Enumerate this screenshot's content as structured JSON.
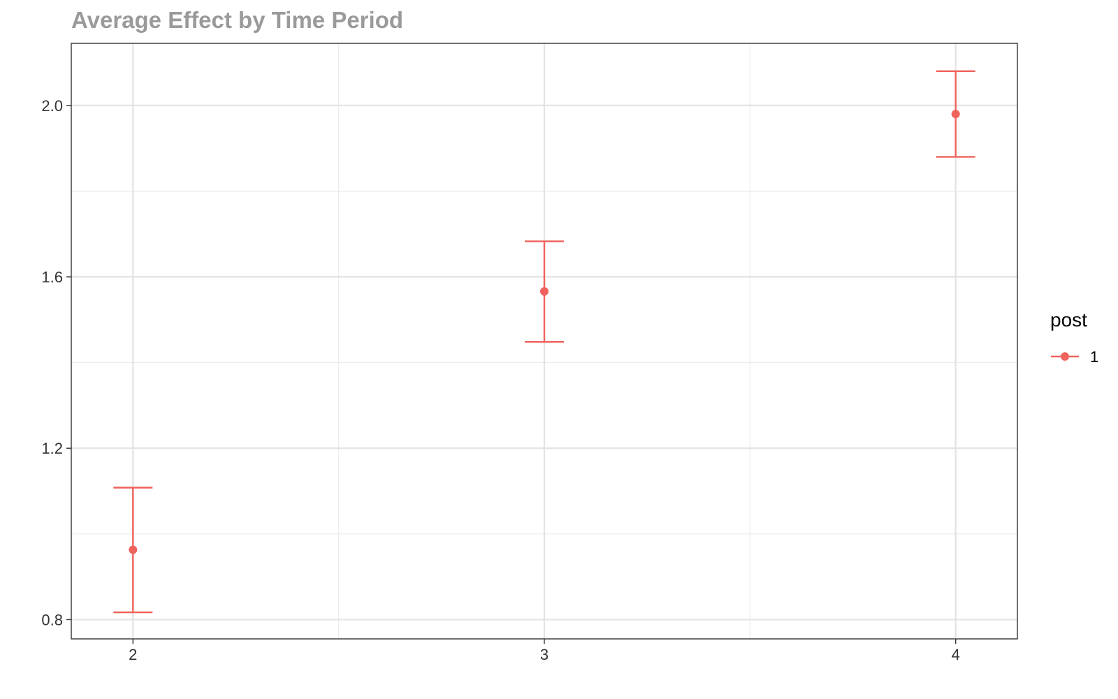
{
  "chart_data": {
    "type": "scatter",
    "title": "Average Effect by Time Period",
    "xlabel": "",
    "ylabel": "",
    "x_ticks": [
      2,
      3,
      4
    ],
    "x_tick_labels": [
      "2",
      "3",
      "4"
    ],
    "y_ticks": [
      0.8,
      1.2,
      1.6,
      2.0
    ],
    "y_tick_labels": [
      "0.8",
      "1.2",
      "1.6",
      "2.0"
    ],
    "xlim": [
      1.85,
      4.15
    ],
    "ylim": [
      0.755,
      2.145
    ],
    "grid": true,
    "legend": {
      "title": "post",
      "position": "right",
      "entries": [
        {
          "label": "1",
          "color": "#F0625D"
        }
      ]
    },
    "series": [
      {
        "name": "1",
        "color": "#F0625D",
        "points": [
          {
            "x": 2,
            "y": 0.963,
            "lower": 0.817,
            "upper": 1.108
          },
          {
            "x": 3,
            "y": 1.566,
            "lower": 1.448,
            "upper": 1.683
          },
          {
            "x": 4,
            "y": 1.98,
            "lower": 1.88,
            "upper": 2.08
          }
        ]
      }
    ]
  }
}
